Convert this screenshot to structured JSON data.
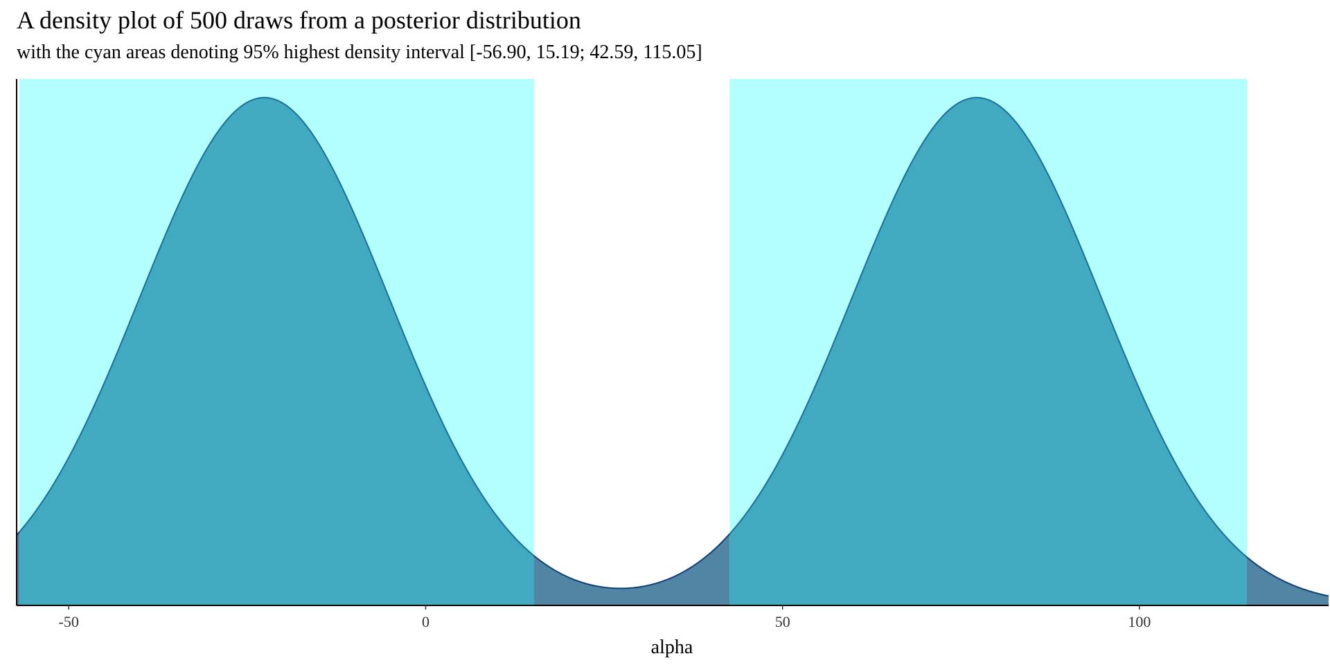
{
  "chart_data": {
    "type": "area",
    "title": "A density plot of 500 draws from a posterior distribution",
    "subtitle": "with the cyan areas denoting 95% highest density interval [-56.90, 15.19; 42.59, 115.05]",
    "xlabel": "alpha",
    "ylabel": "",
    "xlim": [
      -57.3,
      126.5
    ],
    "ylim": [
      0,
      0.0113
    ],
    "x_ticks": [
      -50,
      0,
      50,
      100
    ],
    "x_tick_labels": [
      "-50",
      "0",
      "50",
      "100"
    ],
    "y_axis_labels_shown": false,
    "grid": false,
    "hdi_intervals": [
      [
        -56.9,
        15.19
      ],
      [
        42.59,
        115.05
      ]
    ],
    "density_model": {
      "description": "bimodal density curve",
      "modes": [
        -22.6,
        77.2
      ],
      "peak_density": 0.0109,
      "valley_x": 29.6,
      "valley_density": 0.00098
    },
    "series": [
      {
        "values": [
          [
            -57.3,
            0.0021
          ],
          [
            -50,
            0.0034
          ],
          [
            -40,
            0.006
          ],
          [
            -30,
            0.0091
          ],
          [
            -22.6,
            0.0109
          ],
          [
            -10,
            0.009
          ],
          [
            0,
            0.006
          ],
          [
            10,
            0.003
          ],
          [
            15.19,
            0.0022
          ],
          [
            29.6,
            0.00098
          ],
          [
            42.59,
            0.0022
          ],
          [
            50,
            0.0034
          ],
          [
            60,
            0.0062
          ],
          [
            77.2,
            0.0109
          ],
          [
            90,
            0.0088
          ],
          [
            100,
            0.0056
          ],
          [
            115.05,
            0.0023
          ],
          [
            126.5,
            0.0008
          ]
        ]
      }
    ],
    "colors": {
      "hdi_band": "#b3ffff",
      "density_fill_in_hdi": "#42aac0",
      "density_fill_outside": "#5285a3",
      "density_line": "#1a6f9c",
      "density_line_outside": "#0d3f78",
      "axis": "#000000"
    }
  }
}
